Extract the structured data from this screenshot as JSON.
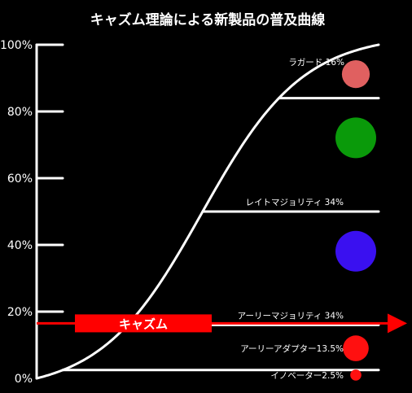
{
  "colors": {
    "background": "#000000",
    "line": "#ffffff",
    "chasm": "#ff0000",
    "laggards": "#e06060",
    "late_majority": "#0a9a0a",
    "early_majority": "#3a10f0",
    "early_adopters": "#ff1010",
    "innovators": "#ff1010"
  },
  "chart_data": {
    "type": "line",
    "title": "キャズム理論による新製品の普及曲線",
    "xlabel": "",
    "ylabel": "",
    "ylim": [
      0,
      100
    ],
    "y_ticks": [
      {
        "value": 0,
        "label": "0%"
      },
      {
        "value": 20,
        "label": "20%"
      },
      {
        "value": 40,
        "label": "40%"
      },
      {
        "value": 60,
        "label": "60%"
      },
      {
        "value": 80,
        "label": "80%"
      },
      {
        "value": 100,
        "label": "100%"
      }
    ],
    "grid": false,
    "segments": [
      {
        "label": "イノベーター2.5%",
        "share": 2.5,
        "lower": 0,
        "upper": 2.5
      },
      {
        "label": "アーリーアダプター13.5%",
        "share": 13.5,
        "lower": 2.5,
        "upper": 16
      },
      {
        "label": "アーリーマジョリティ 34%",
        "share": 34,
        "lower": 16,
        "upper": 50
      },
      {
        "label": "レイトマジョリティ 34%",
        "share": 34,
        "lower": 50,
        "upper": 84
      },
      {
        "label": "ラガード 16%",
        "share": 16,
        "lower": 84,
        "upper": 100
      }
    ],
    "chasm": {
      "label": "キャズム",
      "value": 16
    }
  }
}
